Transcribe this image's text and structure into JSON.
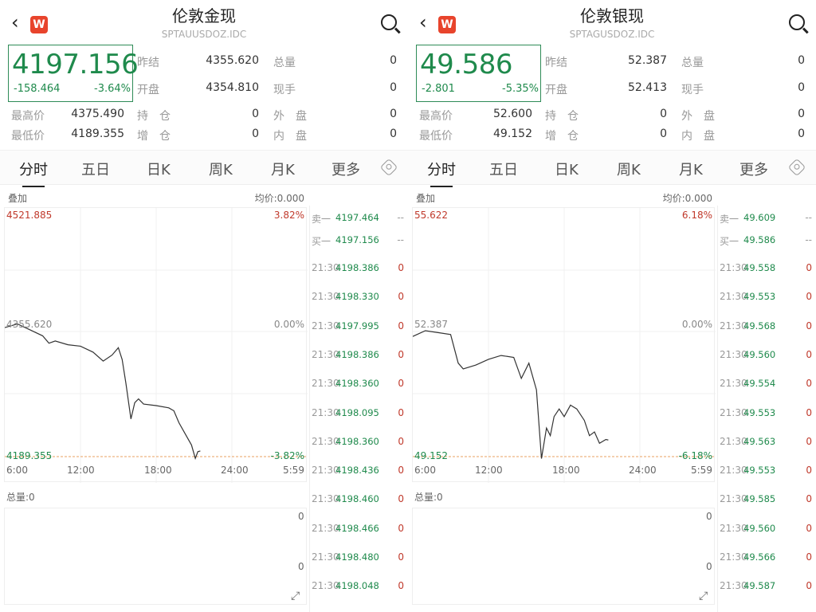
{
  "panels": [
    {
      "title": "伦敦金现",
      "code": "SPTAUUSDOZ.IDC",
      "price": "4197.156",
      "change": "-158.464",
      "change_pct": "-3.64%",
      "stats": [
        [
          "昨结",
          "4355.620",
          "总量",
          "0"
        ],
        [
          "开盘",
          "4354.810",
          "现手",
          "0"
        ],
        [
          "最高价",
          "4375.490",
          "持　仓",
          "0",
          "外　盘",
          "0"
        ],
        [
          "最低价",
          "4189.355",
          "增　仓",
          "0",
          "内　盘",
          "0"
        ]
      ],
      "tabs": [
        "分时",
        "五日",
        "日K",
        "周K",
        "月K",
        "更多"
      ],
      "overlay_label": "叠加",
      "avg_label": "均价:0.000",
      "top_price": "4521.885",
      "top_pct": "3.82%",
      "mid_price": "4355.620",
      "mid_pct": "0.00%",
      "low_price": "4189.355",
      "low_pct": "-3.82%",
      "xticks": [
        "6:00",
        "12:00",
        "18:00",
        "24:00",
        "5:59"
      ],
      "volume_label": "总量:0",
      "vol_top": "0",
      "vol_mid": "0",
      "orderbook": [
        [
          "卖一",
          "4197.464",
          "--"
        ],
        [
          "买一",
          "4197.156",
          "--"
        ]
      ],
      "trades": [
        [
          "21:30",
          "4198.386",
          "0"
        ],
        [
          "21:30",
          "4198.330",
          "0"
        ],
        [
          "21:30",
          "4197.995",
          "0"
        ],
        [
          "21:30",
          "4198.386",
          "0"
        ],
        [
          "21:30",
          "4198.360",
          "0"
        ],
        [
          "21:30",
          "4198.095",
          "0"
        ],
        [
          "21:30",
          "4198.360",
          "0"
        ],
        [
          "21:30",
          "4198.436",
          "0"
        ],
        [
          "21:30",
          "4198.460",
          "0"
        ],
        [
          "21:30",
          "4198.466",
          "0"
        ],
        [
          "21:30",
          "4198.480",
          "0"
        ],
        [
          "21:30",
          "4198.048",
          "0"
        ]
      ],
      "chart_data": {
        "type": "line",
        "ylim": [
          4189.355,
          4521.885
        ],
        "xlim": [
          6,
          30
        ],
        "x": [
          6,
          7,
          8,
          9,
          9.5,
          10,
          11,
          12,
          13,
          13.8,
          14.5,
          15,
          15.3,
          15.6,
          16,
          16.3,
          16.6,
          17,
          18,
          19,
          19.4,
          19.8,
          20.3,
          20.8,
          21.1,
          21.3,
          21.5
        ],
        "y": [
          4363,
          4368,
          4360,
          4352,
          4342,
          4345,
          4340,
          4338,
          4330,
          4318,
          4326,
          4336,
          4320,
          4288,
          4240,
          4262,
          4267,
          4260,
          4258,
          4255,
          4251,
          4235,
          4220,
          4205,
          4187,
          4196,
          4197
        ]
      }
    },
    {
      "title": "伦敦银现",
      "code": "SPTAGUSDOZ.IDC",
      "price": "49.586",
      "change": "-2.801",
      "change_pct": "-5.35%",
      "stats": [
        [
          "昨结",
          "52.387",
          "总量",
          "0"
        ],
        [
          "开盘",
          "52.413",
          "现手",
          "0"
        ],
        [
          "最高价",
          "52.600",
          "持　仓",
          "0",
          "外　盘",
          "0"
        ],
        [
          "最低价",
          "49.152",
          "增　仓",
          "0",
          "内　盘",
          "0"
        ]
      ],
      "tabs": [
        "分时",
        "五日",
        "日K",
        "周K",
        "月K",
        "更多"
      ],
      "overlay_label": "叠加",
      "avg_label": "均价:0.000",
      "top_price": "55.622",
      "top_pct": "6.18%",
      "mid_price": "52.387",
      "mid_pct": "0.00%",
      "low_price": "49.152",
      "low_pct": "-6.18%",
      "xticks": [
        "6:00",
        "12:00",
        "18:00",
        "24:00",
        "5:59"
      ],
      "volume_label": "总量:0",
      "vol_top": "0",
      "vol_mid": "0",
      "orderbook": [
        [
          "卖一",
          "49.609",
          "--"
        ],
        [
          "买一",
          "49.586",
          "--"
        ]
      ],
      "trades": [
        [
          "21:30",
          "49.558",
          "0"
        ],
        [
          "21:30",
          "49.553",
          "0"
        ],
        [
          "21:30",
          "49.568",
          "0"
        ],
        [
          "21:30",
          "49.560",
          "0"
        ],
        [
          "21:30",
          "49.554",
          "0"
        ],
        [
          "21:30",
          "49.553",
          "0"
        ],
        [
          "21:30",
          "49.563",
          "0"
        ],
        [
          "21:30",
          "49.553",
          "0"
        ],
        [
          "21:30",
          "49.585",
          "0"
        ],
        [
          "21:30",
          "49.560",
          "0"
        ],
        [
          "21:30",
          "49.566",
          "0"
        ],
        [
          "21:30",
          "49.587",
          "0"
        ]
      ],
      "chart_data": {
        "type": "line",
        "ylim": [
          49.152,
          55.622
        ],
        "xlim": [
          6,
          30
        ],
        "x": [
          6,
          7,
          8,
          9,
          9.6,
          10,
          11,
          12,
          13,
          14,
          14.6,
          15.2,
          15.8,
          16.2,
          16.6,
          16.9,
          17.2,
          17.6,
          18,
          18.5,
          19,
          19.6,
          20,
          20.4,
          20.8,
          21.3,
          21.5
        ],
        "y": [
          52.3,
          52.45,
          52.4,
          52.35,
          51.6,
          51.45,
          51.55,
          51.7,
          51.8,
          51.75,
          51.2,
          51.6,
          50.9,
          49.1,
          49.9,
          49.7,
          50.2,
          50.4,
          50.2,
          50.5,
          50.4,
          50.1,
          49.7,
          49.8,
          49.5,
          49.6,
          49.586
        ]
      }
    }
  ]
}
